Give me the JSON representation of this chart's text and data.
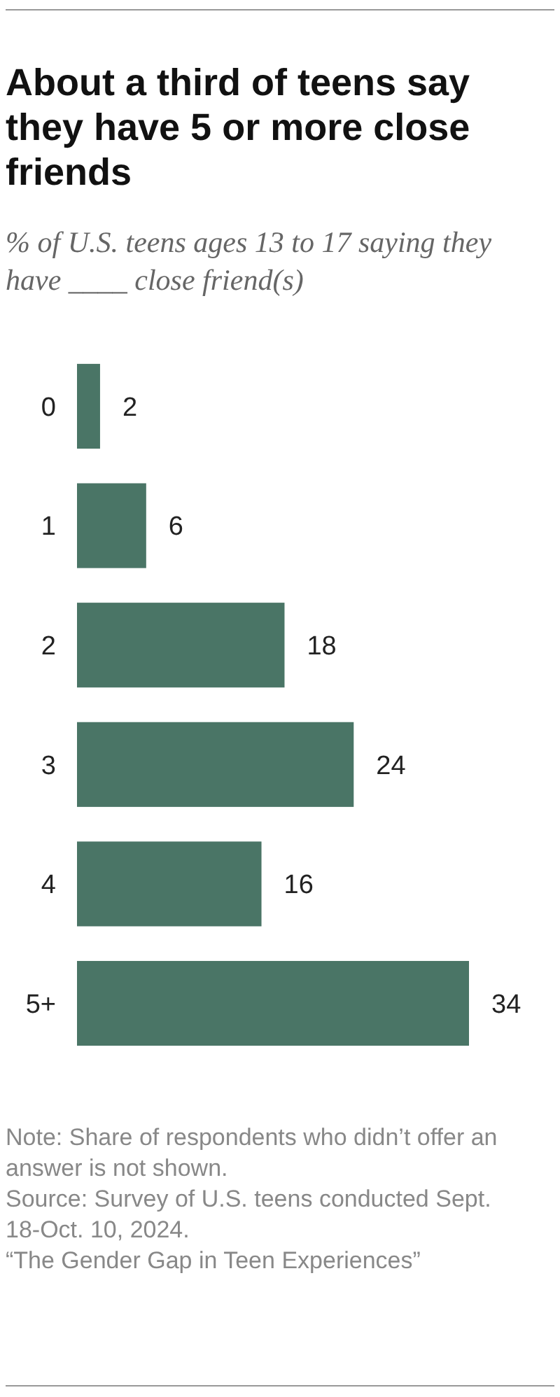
{
  "chart_data": {
    "type": "bar",
    "orientation": "horizontal",
    "title": "About a third of teens say they have 5 or more close friends",
    "subtitle": "% of U.S. teens ages 13 to 17 saying they have ____ close friend(s)",
    "categories": [
      "0",
      "1",
      "2",
      "3",
      "4",
      "5+"
    ],
    "values": [
      2,
      6,
      18,
      24,
      16,
      34
    ],
    "color": "#4a7566",
    "xlim": [
      0,
      34
    ],
    "data_labels": true,
    "tick_labels": "y",
    "annotations": [
      "Note: Share of respondents who didn’t offer an answer is not shown.",
      "Source: Survey of U.S. teens conducted Sept. 18-Oct. 10, 2024.",
      "“The Gender Gap in Teen Experiences”"
    ]
  }
}
